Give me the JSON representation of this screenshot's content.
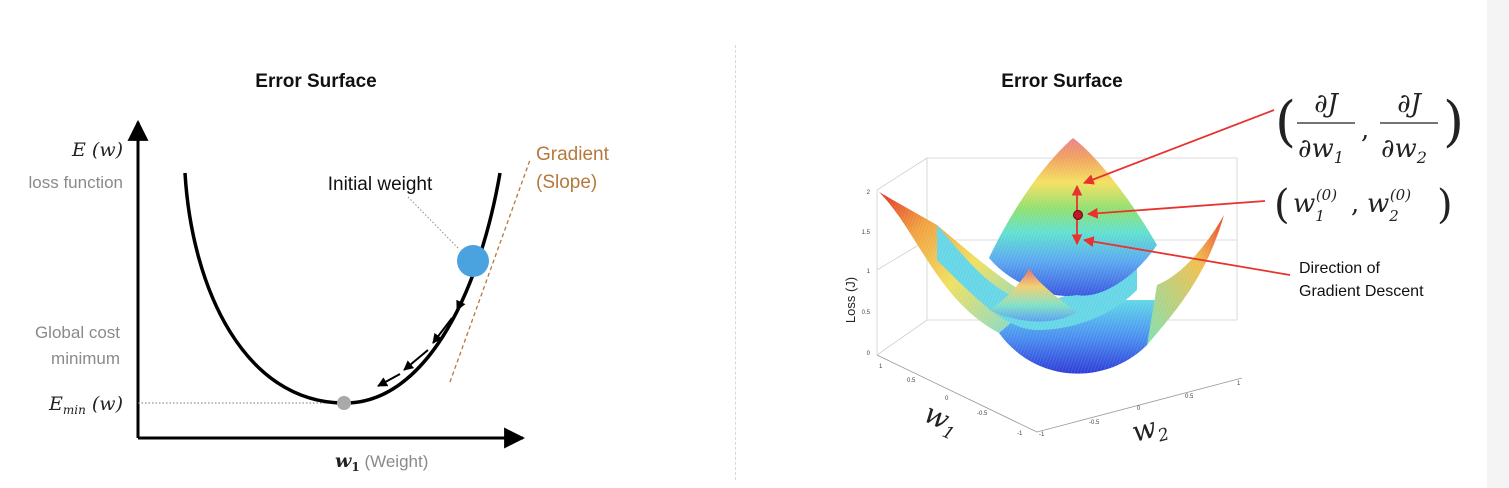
{
  "left": {
    "title": "Error Surface",
    "y_axis_symbol": "E (w)",
    "y_axis_desc": "loss function",
    "initial_weight": "Initial weight",
    "gradient_line1": "Gradient",
    "gradient_line2": "(Slope)",
    "global_line1": "Global cost",
    "global_line2": "minimum",
    "emin_main": "E",
    "emin_sub": "min",
    "emin_arg": " (w)",
    "x_var": "w",
    "x_sub": "1",
    "x_desc": " (Weight)"
  },
  "right": {
    "title": "Error Surface",
    "z_label": "Loss (J)",
    "z_ticks": [
      "0",
      "0.5",
      "1",
      "1.5",
      "2"
    ],
    "w1_ticks": [
      "1",
      "0.5",
      "0",
      "-0.5",
      "-1"
    ],
    "w2_ticks": [
      "-1",
      "-0.5",
      "0",
      "0.5",
      "1"
    ],
    "w1_label": "w",
    "w1_sub": "1",
    "w2_label": "w",
    "w2_sub": "2",
    "grad_d": "∂J",
    "grad_den1": "∂w",
    "grad_den1_sub": "1",
    "grad_den2": "∂w",
    "grad_den2_sub": "2",
    "point_w": "w",
    "point_sub1": "1",
    "point_sub2": "2",
    "point_sup": "(0)",
    "descent_line1": "Direction of",
    "descent_line2": "Gradient Descent"
  },
  "colors": {
    "arrow_red": "#e8322e",
    "ball_blue": "#4aa3df",
    "gradient_brown": "#b5793d",
    "min_gray": "#a9a9a9"
  }
}
